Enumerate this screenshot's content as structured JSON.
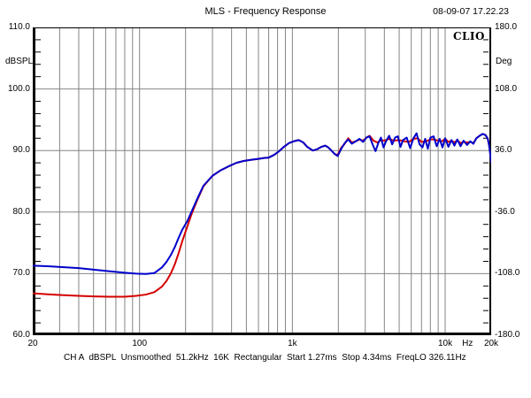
{
  "header": {
    "title": "MLS - Frequency Response",
    "datetime": "08-09-07 17.22.23",
    "logo": "CLIO"
  },
  "status_line": {
    "tokens": [
      "CH A",
      "dBSPL",
      "Unsmoothed",
      "51.2kHz",
      "16K",
      "Rectangular",
      "Start 1.27ms",
      "Stop 4.34ms",
      "FreqLO 326.11Hz"
    ],
    "text": "CH A  dBSPL  Unsmoothed  51.2kHz  16K  Rectangular  Start 1.27ms  Stop 4.34ms  FreqLO 326.11Hz"
  },
  "chart_data": {
    "type": "line",
    "title": "MLS - Frequency Response",
    "xlabel": "Hz",
    "x_axis": {
      "scale": "log",
      "unit": "Hz",
      "min": 20,
      "max": 20000,
      "tick_labels": [
        {
          "hz": 20,
          "label": "20"
        },
        {
          "hz": 100,
          "label": "100"
        },
        {
          "hz": 1000,
          "label": "1k"
        },
        {
          "hz": 10000,
          "label": "10k"
        },
        {
          "hz": 20000,
          "label": "20k"
        }
      ],
      "unit_label_hz": 14000,
      "grid_hz": [
        30,
        40,
        50,
        60,
        70,
        80,
        90,
        100,
        200,
        300,
        400,
        500,
        600,
        700,
        800,
        900,
        1000,
        2000,
        3000,
        4000,
        5000,
        6000,
        7000,
        8000,
        9000,
        10000
      ]
    },
    "left_axis": {
      "label": "dBSPL",
      "min": 60,
      "max": 110,
      "major_step": 10,
      "minor_step": 2,
      "ticks": [
        110,
        100,
        90,
        80,
        70,
        60
      ],
      "tick_labels": [
        "110.0",
        "100.0",
        "90.0",
        "80.0",
        "70.0",
        "60.0"
      ],
      "grid_db": [
        100,
        90,
        80,
        70
      ]
    },
    "right_axis": {
      "label": "Deg",
      "min": -180,
      "max": 180,
      "ticks": [
        180,
        108,
        36,
        -36,
        -108,
        -180
      ],
      "tick_labels": [
        "180.0",
        "108.0",
        "36.0",
        "-36.0",
        "-108.0",
        "-180.0"
      ]
    },
    "grid_color": "#848484",
    "series": [
      {
        "name": "response-red",
        "color": "#d40000",
        "points": [
          [
            20,
            66.8
          ],
          [
            25,
            66.65
          ],
          [
            32,
            66.5
          ],
          [
            40,
            66.4
          ],
          [
            50,
            66.3
          ],
          [
            63,
            66.25
          ],
          [
            80,
            66.25
          ],
          [
            95,
            66.4
          ],
          [
            110,
            66.6
          ],
          [
            125,
            67.0
          ],
          [
            140,
            67.9
          ],
          [
            150,
            68.8
          ],
          [
            160,
            70.0
          ],
          [
            170,
            71.5
          ],
          [
            180,
            73.3
          ],
          [
            190,
            75.2
          ],
          [
            205,
            77.6
          ],
          [
            220,
            79.8
          ],
          [
            240,
            82.1
          ],
          [
            262,
            84.2
          ],
          [
            300,
            85.9
          ],
          [
            340,
            86.8
          ],
          [
            380,
            87.4
          ],
          [
            430,
            88.0
          ],
          [
            480,
            88.3
          ],
          [
            540,
            88.5
          ],
          [
            600,
            88.65
          ],
          [
            660,
            88.8
          ],
          [
            700,
            88.85
          ],
          [
            760,
            89.3
          ],
          [
            820,
            89.9
          ],
          [
            880,
            90.6
          ],
          [
            950,
            91.2
          ],
          [
            1020,
            91.5
          ],
          [
            1100,
            91.7
          ],
          [
            1180,
            91.3
          ],
          [
            1250,
            90.6
          ],
          [
            1360,
            90.0
          ],
          [
            1450,
            90.2
          ],
          [
            1550,
            90.6
          ],
          [
            1640,
            90.8
          ],
          [
            1720,
            90.5
          ],
          [
            1800,
            90.0
          ],
          [
            1900,
            89.4
          ],
          [
            1980,
            89.3
          ],
          [
            2080,
            90.4
          ],
          [
            2200,
            91.1
          ],
          [
            2320,
            92.0
          ],
          [
            2450,
            91.3
          ],
          [
            2600,
            91.5
          ],
          [
            2750,
            91.8
          ],
          [
            2900,
            91.6
          ],
          [
            3050,
            92.1
          ],
          [
            3200,
            92.4
          ],
          [
            3400,
            91.6
          ],
          [
            3600,
            91.3
          ],
          [
            3800,
            91.7
          ],
          [
            4000,
            91.6
          ],
          [
            4300,
            91.9
          ],
          [
            4600,
            91.6
          ],
          [
            5000,
            91.7
          ],
          [
            5400,
            91.5
          ],
          [
            5800,
            91.4
          ],
          [
            6200,
            91.9
          ],
          [
            6600,
            92.0
          ],
          [
            7000,
            91.4
          ],
          [
            7500,
            91.5
          ],
          [
            8000,
            91.8
          ],
          [
            8500,
            91.8
          ],
          [
            9000,
            91.6
          ],
          [
            9500,
            91.5
          ],
          [
            10000,
            91.9
          ],
          [
            10500,
            91.4
          ],
          [
            11000,
            91.6
          ],
          [
            11500,
            91.3
          ],
          [
            12000,
            91.7
          ],
          [
            12600,
            91.2
          ],
          [
            13200,
            91.4
          ],
          [
            13900,
            91.3
          ],
          [
            14600,
            91.4
          ],
          [
            15300,
            91.2
          ],
          [
            16000,
            92.0
          ],
          [
            16800,
            92.4
          ],
          [
            17600,
            92.7
          ],
          [
            18400,
            92.5
          ],
          [
            19000,
            91.9
          ],
          [
            19400,
            90.8
          ],
          [
            19700,
            89.5
          ],
          [
            20000,
            88.1
          ]
        ]
      },
      {
        "name": "response-blue",
        "color": "#0000cc",
        "points": [
          [
            20,
            71.3
          ],
          [
            25,
            71.2
          ],
          [
            32,
            71.05
          ],
          [
            40,
            70.9
          ],
          [
            50,
            70.65
          ],
          [
            63,
            70.4
          ],
          [
            80,
            70.15
          ],
          [
            95,
            70.0
          ],
          [
            110,
            69.95
          ],
          [
            125,
            70.1
          ],
          [
            140,
            71.0
          ],
          [
            150,
            71.9
          ],
          [
            160,
            73.0
          ],
          [
            170,
            74.3
          ],
          [
            180,
            75.8
          ],
          [
            190,
            77.1
          ],
          [
            205,
            78.5
          ],
          [
            220,
            80.2
          ],
          [
            240,
            82.3
          ],
          [
            262,
            84.3
          ],
          [
            300,
            85.9
          ],
          [
            340,
            86.8
          ],
          [
            380,
            87.4
          ],
          [
            430,
            88.0
          ],
          [
            480,
            88.3
          ],
          [
            540,
            88.5
          ],
          [
            600,
            88.65
          ],
          [
            660,
            88.8
          ],
          [
            700,
            88.85
          ],
          [
            760,
            89.3
          ],
          [
            820,
            89.9
          ],
          [
            880,
            90.6
          ],
          [
            950,
            91.2
          ],
          [
            1020,
            91.5
          ],
          [
            1100,
            91.7
          ],
          [
            1180,
            91.3
          ],
          [
            1250,
            90.6
          ],
          [
            1360,
            90.0
          ],
          [
            1450,
            90.2
          ],
          [
            1550,
            90.6
          ],
          [
            1640,
            90.8
          ],
          [
            1720,
            90.5
          ],
          [
            1800,
            90.0
          ],
          [
            1900,
            89.4
          ],
          [
            1980,
            89.1
          ],
          [
            2080,
            90.2
          ],
          [
            2200,
            91.2
          ],
          [
            2320,
            91.8
          ],
          [
            2450,
            91.1
          ],
          [
            2600,
            91.5
          ],
          [
            2750,
            91.9
          ],
          [
            2900,
            91.4
          ],
          [
            3050,
            92.1
          ],
          [
            3200,
            92.3
          ],
          [
            3350,
            91.0
          ],
          [
            3500,
            89.9
          ],
          [
            3650,
            91.2
          ],
          [
            3800,
            92.1
          ],
          [
            3950,
            90.5
          ],
          [
            4100,
            91.5
          ],
          [
            4300,
            92.4
          ],
          [
            4500,
            91.0
          ],
          [
            4700,
            92.1
          ],
          [
            4900,
            92.3
          ],
          [
            5100,
            90.6
          ],
          [
            5300,
            91.7
          ],
          [
            5600,
            92.1
          ],
          [
            5900,
            90.4
          ],
          [
            6200,
            92.0
          ],
          [
            6500,
            92.8
          ],
          [
            6800,
            91.0
          ],
          [
            7100,
            90.5
          ],
          [
            7400,
            91.9
          ],
          [
            7700,
            90.3
          ],
          [
            8000,
            92.1
          ],
          [
            8400,
            92.3
          ],
          [
            8800,
            90.7
          ],
          [
            9200,
            91.9
          ],
          [
            9600,
            90.5
          ],
          [
            10000,
            92.0
          ],
          [
            10500,
            90.6
          ],
          [
            11000,
            91.7
          ],
          [
            11500,
            90.8
          ],
          [
            12000,
            91.8
          ],
          [
            12600,
            90.7
          ],
          [
            13200,
            91.6
          ],
          [
            13900,
            90.9
          ],
          [
            14600,
            91.5
          ],
          [
            15300,
            91.1
          ],
          [
            16000,
            92.0
          ],
          [
            16800,
            92.4
          ],
          [
            17600,
            92.7
          ],
          [
            18400,
            92.5
          ],
          [
            19000,
            91.9
          ],
          [
            19400,
            90.8
          ],
          [
            19700,
            89.5
          ],
          [
            20000,
            88.1
          ]
        ]
      }
    ]
  }
}
